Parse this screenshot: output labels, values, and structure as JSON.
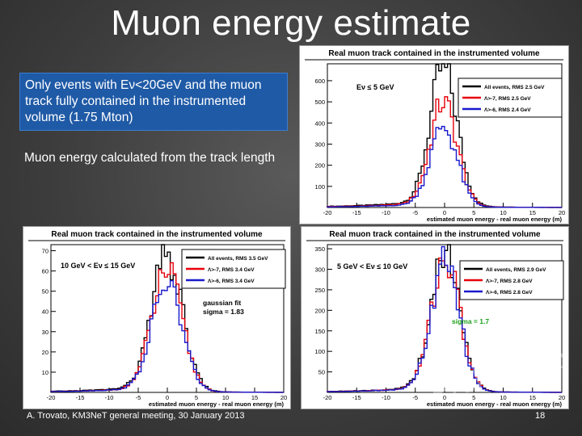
{
  "slide": {
    "title": "Muon energy estimate",
    "box_text": "Only events with Eν<20GeV and the muon track fully contained in the instrumented volume (1.75 Mton)",
    "bullet_text": "Muon energy calculated from the track length",
    "footer": "A. Trovato, KM3NeT general meeting, 30 January 2013",
    "page_number": "18",
    "watermark": "Preliminary"
  },
  "chart_data": [
    {
      "type": "histogram",
      "panel_title": "Real muon track contained in the instrumented volume",
      "energy_label": "Eν ≤ 5 GeV",
      "xlabel": "estimated muon energy - real muon energy (m)",
      "xlim": [
        -20,
        20
      ],
      "ylim": [
        0,
        680
      ],
      "xticks": [
        -20,
        -15,
        -10,
        -5,
        0,
        5,
        10,
        15,
        20
      ],
      "yticks": [
        100,
        200,
        300,
        400,
        500,
        600
      ],
      "legend": [
        {
          "label": "All events, RMS  2.5 GeV",
          "color": "#000000"
        },
        {
          "label": "Λ>-7, RMS  2.5 GeV",
          "color": "#e8000b"
        },
        {
          "label": "Λ>-6, RMS  2.4 GeV",
          "color": "#1a1acc"
        }
      ],
      "bins_x": [
        -2.75,
        -2.25,
        -1.75,
        -1.25,
        -0.75,
        -0.25,
        0.25,
        0.75,
        1.25,
        1.75,
        2.25,
        2.75
      ],
      "series": [
        {
          "color": "#000000",
          "center": -0.1,
          "peak": 640,
          "sigma": 2.3,
          "tail": 40
        },
        {
          "color": "#e8000b",
          "center": -0.1,
          "peak": 480,
          "sigma": 2.3,
          "tail": 30
        },
        {
          "color": "#1a1acc",
          "center": -0.1,
          "peak": 370,
          "sigma": 2.3,
          "tail": 22
        }
      ]
    },
    {
      "type": "histogram",
      "panel_title": "Real muon track contained in the instrumented volume",
      "energy_label": "10 GeV < Eν ≤ 15 GeV",
      "xlabel": "estimated muon energy - real muon energy (m)",
      "xlim": [
        -20,
        20
      ],
      "ylim": [
        0,
        73
      ],
      "xticks": [
        -20,
        -15,
        -10,
        -5,
        0,
        5,
        10,
        15,
        20
      ],
      "yticks": [
        10,
        20,
        30,
        40,
        50,
        60,
        70
      ],
      "legend": [
        {
          "label": "All events, RMS  3.5 GeV",
          "color": "#000000"
        },
        {
          "label": "Λ>-7, RMS  3.4 GeV",
          "color": "#e8000b"
        },
        {
          "label": "Λ>-6, RMS  3.4 GeV",
          "color": "#1a1acc"
        }
      ],
      "fit_label": "gaussian fit",
      "fit_sigma": "sigma = 1.83",
      "series": [
        {
          "color": "#000000",
          "center": 0.0,
          "peak": 65,
          "sigma": 2.6,
          "tail": 4
        },
        {
          "color": "#e8000b",
          "center": 0.0,
          "peak": 58,
          "sigma": 2.6,
          "tail": 3
        },
        {
          "color": "#1a1acc",
          "center": 0.0,
          "peak": 52,
          "sigma": 2.6,
          "tail": 3
        }
      ]
    },
    {
      "type": "histogram",
      "panel_title": "Real muon track contained in the instrumented volume",
      "energy_label": "5 GeV < Eν ≤ 10 GeV",
      "xlabel": "estimated muon energy - real muon energy (m)",
      "xlim": [
        -20,
        20
      ],
      "ylim": [
        0,
        360
      ],
      "xticks": [
        -20,
        -15,
        -10,
        -5,
        0,
        5,
        10,
        15,
        20
      ],
      "yticks": [
        50,
        100,
        150,
        200,
        250,
        300,
        350
      ],
      "legend": [
        {
          "label": "All events, RMS  2.9 GeV",
          "color": "#000000"
        },
        {
          "label": "Λ>-7, RMS  2.8 GeV",
          "color": "#e8000b"
        },
        {
          "label": "Λ>-6, RMS  2.8 GeV",
          "color": "#1a1acc"
        }
      ],
      "fit_sigma": "sigma = 1.7",
      "series": [
        {
          "color": "#000000",
          "center": 0.2,
          "peak": 345,
          "sigma": 2.4,
          "tail": 18
        },
        {
          "color": "#e8000b",
          "center": 0.2,
          "peak": 320,
          "sigma": 2.4,
          "tail": 16
        },
        {
          "color": "#1a1acc",
          "center": 0.2,
          "peak": 300,
          "sigma": 2.4,
          "tail": 15
        }
      ]
    }
  ]
}
